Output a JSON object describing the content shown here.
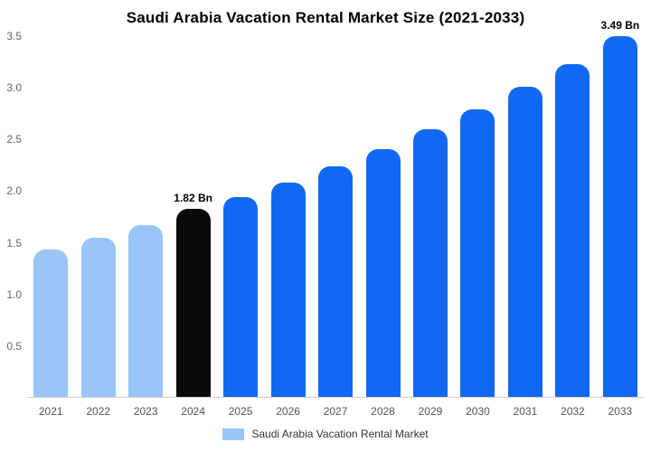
{
  "title": "Saudi Arabia Vacation Rental Market Size (2021-2033)",
  "legend": {
    "label": "Saudi Arabia Vacation Rental Market",
    "marker_color": "#9ac6f7"
  },
  "colors": {
    "historical": "#9ac6f7",
    "base_year": "#0a0a0a",
    "forecast": "#1168f2",
    "axis_line": "#cfcfcf"
  },
  "chart_data": {
    "type": "bar",
    "title": "Saudi Arabia Vacation Rental Market Size (2021-2033)",
    "unit": "Bn",
    "categories": [
      "2021",
      "2022",
      "2023",
      "2024",
      "2025",
      "2026",
      "2027",
      "2028",
      "2029",
      "2030",
      "2031",
      "2032",
      "2033"
    ],
    "values": [
      1.43,
      1.54,
      1.66,
      1.82,
      1.93,
      2.07,
      2.23,
      2.4,
      2.59,
      2.78,
      3.0,
      3.22,
      3.49
    ],
    "bar_colors": [
      "#9ac6f7",
      "#9ac6f7",
      "#9ac6f7",
      "#0a0a0a",
      "#1168f2",
      "#1168f2",
      "#1168f2",
      "#1168f2",
      "#1168f2",
      "#1168f2",
      "#1168f2",
      "#1168f2",
      "#1168f2"
    ],
    "point_labels": [
      "",
      "",
      "",
      "1.82 Bn",
      "",
      "",
      "",
      "",
      "",
      "",
      "",
      "",
      "3.49 Bn"
    ],
    "ylim": [
      0,
      3.5
    ],
    "ytick_labels": [
      "0.5",
      "1.0",
      "1.5",
      "2.0",
      "2.5",
      "3.0",
      "3.5"
    ],
    "grid": false,
    "legend_position": "bottom",
    "legend_entries": [
      "Saudi Arabia Vacation Rental Market"
    ]
  }
}
